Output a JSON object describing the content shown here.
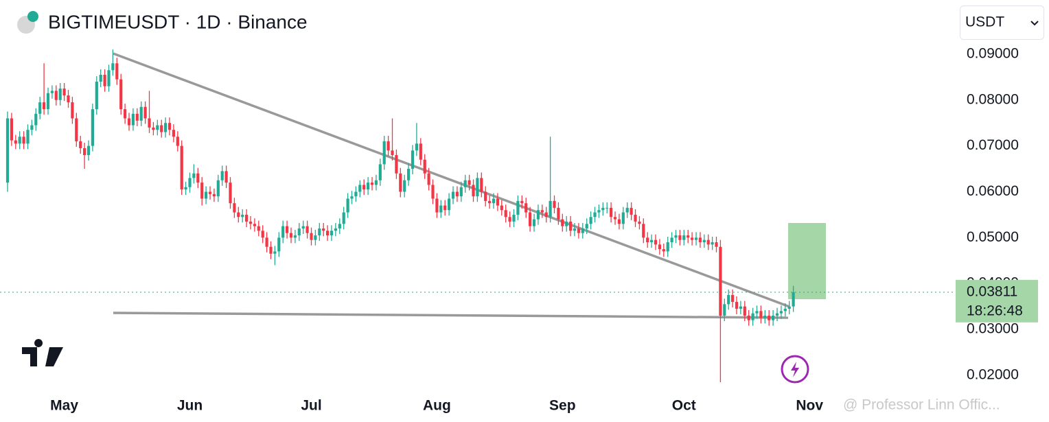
{
  "chart_data": {
    "type": "candlestick",
    "title": "BIGTIMEUSDT · 1D · Binance",
    "currency": "USDT",
    "up_color": "#22ab94",
    "down_color": "#f23645",
    "last_price": 0.03811,
    "countdown": "18:26:48",
    "watermark": "@ Professor Linn Offic...",
    "ylim": [
      0.0158,
      0.1018
    ],
    "yticks": [
      {
        "value": 0.02,
        "label": "0.02000"
      },
      {
        "value": 0.03,
        "label": "0.03000"
      },
      {
        "value": 0.04,
        "label": "0.04000"
      },
      {
        "value": 0.05,
        "label": "0.05000"
      },
      {
        "value": 0.06,
        "label": "0.06000"
      },
      {
        "value": 0.07,
        "label": "0.07000"
      },
      {
        "value": 0.08,
        "label": "0.08000"
      },
      {
        "value": 0.09,
        "label": "0.09000"
      }
    ],
    "categories": [
      null,
      null,
      null,
      null,
      null,
      null,
      null,
      null,
      null,
      null,
      null,
      null,
      null,
      null,
      "May",
      null,
      null,
      null,
      null,
      null,
      null,
      null,
      null,
      null,
      null,
      null,
      null,
      null,
      null,
      null,
      null,
      null,
      null,
      null,
      null,
      null,
      null,
      null,
      null,
      null,
      null,
      null,
      null,
      null,
      null,
      "Jun",
      null,
      null,
      null,
      null,
      null,
      null,
      null,
      null,
      null,
      null,
      null,
      null,
      null,
      null,
      null,
      null,
      null,
      null,
      null,
      null,
      null,
      null,
      null,
      null,
      null,
      null,
      null,
      null,
      null,
      "Jul",
      null,
      null,
      null,
      null,
      null,
      null,
      null,
      null,
      null,
      null,
      null,
      null,
      null,
      null,
      null,
      null,
      null,
      null,
      null,
      null,
      null,
      null,
      null,
      null,
      null,
      null,
      null,
      null,
      null,
      null,
      "Aug",
      null,
      null,
      null,
      null,
      null,
      null,
      null,
      null,
      null,
      null,
      null,
      null,
      null,
      null,
      null,
      null,
      null,
      null,
      null,
      null,
      null,
      null,
      null,
      null,
      null,
      null,
      null,
      null,
      null,
      null,
      "Sep",
      null,
      null,
      null,
      null,
      null,
      null,
      null,
      null,
      null,
      null,
      null,
      null,
      null,
      null,
      null,
      null,
      null,
      null,
      null,
      null,
      null,
      null,
      null,
      null,
      null,
      null,
      null,
      null,
      null,
      "Oct",
      null,
      null,
      null,
      null,
      null,
      null,
      null,
      null,
      null,
      null,
      null,
      null,
      null,
      null,
      null,
      null,
      null,
      null,
      null,
      null,
      null,
      null,
      null,
      null,
      null,
      null,
      null,
      null,
      null,
      null,
      "Nov"
    ],
    "open": [
      0.062,
      0.076,
      0.0712,
      0.0705,
      0.072,
      0.0705,
      0.0735,
      0.0745,
      0.077,
      0.0795,
      0.078,
      0.0815,
      0.082,
      0.08,
      0.0825,
      0.081,
      0.0795,
      0.076,
      0.071,
      0.0695,
      0.068,
      0.07,
      0.078,
      0.084,
      0.0855,
      0.083,
      0.0865,
      0.088,
      0.0845,
      0.078,
      0.076,
      0.0745,
      0.077,
      0.0755,
      0.0785,
      0.076,
      0.074,
      0.0735,
      0.0745,
      0.073,
      0.075,
      0.0735,
      0.072,
      0.07,
      0.0605,
      0.061,
      0.063,
      0.064,
      0.062,
      0.0585,
      0.06,
      0.0595,
      0.059,
      0.0625,
      0.0645,
      0.062,
      0.0575,
      0.0555,
      0.0545,
      0.055,
      0.0535,
      0.053,
      0.0525,
      0.0515,
      0.05,
      0.048,
      0.0465,
      0.047,
      0.05,
      0.0525,
      0.051,
      0.05,
      0.0505,
      0.052,
      0.0525,
      0.051,
      0.0495,
      0.0505,
      0.052,
      0.0515,
      0.0505,
      0.0515,
      0.052,
      0.053,
      0.0555,
      0.0585,
      0.059,
      0.06,
      0.0615,
      0.0605,
      0.062,
      0.0615,
      0.0625,
      0.066,
      0.071,
      0.069,
      0.068,
      0.064,
      0.06,
      0.0625,
      0.065,
      0.069,
      0.0705,
      0.067,
      0.064,
      0.0615,
      0.0585,
      0.0555,
      0.057,
      0.056,
      0.0585,
      0.06,
      0.059,
      0.061,
      0.0625,
      0.0615,
      0.059,
      0.063,
      0.06,
      0.058,
      0.0575,
      0.0585,
      0.057,
      0.056,
      0.0545,
      0.0535,
      0.055,
      0.058,
      0.0575,
      0.0555,
      0.0525,
      0.054,
      0.056,
      0.0555,
      0.0545,
      0.058,
      0.0565,
      0.054,
      0.0525,
      0.0535,
      0.0515,
      0.052,
      0.051,
      0.052,
      0.053,
      0.0545,
      0.0555,
      0.056,
      0.0565,
      0.0565,
      0.0545,
      0.054,
      0.053,
      0.0555,
      0.0565,
      0.055,
      0.0535,
      0.053,
      0.05,
      0.049,
      0.0495,
      0.0485,
      0.0475,
      0.047,
      0.049,
      0.05,
      0.0505,
      0.0495,
      0.0505,
      0.05,
      0.0495,
      0.05,
      0.049,
      0.0495,
      0.0485,
      0.049,
      0.048,
      0.033,
      0.0355,
      0.0375,
      0.036,
      0.0345,
      0.035,
      0.033,
      0.032,
      0.0335,
      0.034,
      0.0325,
      0.033,
      0.032,
      0.033,
      0.0335,
      0.034,
      0.0345,
      0.035,
      null,
      null,
      null,
      null
    ],
    "high": [
      0.0775,
      0.0772,
      0.0724,
      0.0732,
      0.0732,
      0.0747,
      0.0757,
      0.0782,
      0.0807,
      0.088,
      0.0827,
      0.0832,
      0.0832,
      0.0837,
      0.0837,
      0.0822,
      0.0807,
      0.0772,
      0.0722,
      0.0707,
      0.0712,
      0.0792,
      0.0852,
      0.0867,
      0.0867,
      0.0877,
      0.091,
      0.0892,
      0.0857,
      0.0792,
      0.0772,
      0.0782,
      0.0782,
      0.0797,
      0.0797,
      0.082,
      0.0752,
      0.0757,
      0.0757,
      0.0762,
      0.0762,
      0.0747,
      0.0732,
      0.0712,
      0.0622,
      0.0642,
      0.066,
      0.0652,
      0.0632,
      0.0612,
      0.0612,
      0.0607,
      0.0637,
      0.0657,
      0.0657,
      0.0632,
      0.0587,
      0.0567,
      0.0562,
      0.0562,
      0.0547,
      0.0542,
      0.0537,
      0.0527,
      0.0512,
      0.0492,
      0.0482,
      0.0512,
      0.0537,
      0.0537,
      0.0522,
      0.0517,
      0.0532,
      0.0537,
      0.0537,
      0.0522,
      0.0517,
      0.0532,
      0.0532,
      0.0527,
      0.0527,
      0.0532,
      0.0542,
      0.0567,
      0.0597,
      0.0602,
      0.0612,
      0.0625,
      0.0627,
      0.0632,
      0.0632,
      0.0637,
      0.0672,
      0.0722,
      0.0722,
      0.076,
      0.0692,
      0.0652,
      0.0637,
      0.0662,
      0.0702,
      0.075,
      0.0717,
      0.0682,
      0.0652,
      0.0627,
      0.0597,
      0.0582,
      0.0582,
      0.0597,
      0.0612,
      0.0612,
      0.0622,
      0.0637,
      0.0637,
      0.0627,
      0.0642,
      0.0642,
      0.0612,
      0.0592,
      0.0597,
      0.0597,
      0.0582,
      0.0572,
      0.0557,
      0.0562,
      0.0592,
      0.0592,
      0.0587,
      0.0567,
      0.0552,
      0.0572,
      0.0572,
      0.0567,
      0.072,
      0.0592,
      0.0577,
      0.0552,
      0.0547,
      0.0547,
      0.0532,
      0.0532,
      0.0532,
      0.0542,
      0.0557,
      0.0567,
      0.0572,
      0.0577,
      0.0577,
      0.0577,
      0.0557,
      0.0552,
      0.0567,
      0.0577,
      0.0577,
      0.0562,
      0.0547,
      0.0542,
      0.0512,
      0.0507,
      0.0507,
      0.0497,
      0.0487,
      0.0502,
      0.0512,
      0.0517,
      0.0517,
      0.0517,
      0.0517,
      0.0512,
      0.0512,
      0.0512,
      0.0507,
      0.0507,
      0.0502,
      0.0502,
      0.0495,
      0.0367,
      0.0387,
      0.0387,
      0.0372,
      0.0362,
      0.0362,
      0.0342,
      0.0347,
      0.0352,
      0.0352,
      0.0342,
      0.0342,
      0.0342,
      0.0347,
      0.0352,
      0.0357,
      0.0362,
      0.0395,
      null,
      null,
      null,
      null
    ],
    "low": [
      0.06,
      0.07,
      0.0693,
      0.0693,
      0.0693,
      0.0693,
      0.0723,
      0.0733,
      0.0758,
      0.0768,
      0.0768,
      0.0803,
      0.0788,
      0.0788,
      0.0798,
      0.0783,
      0.0748,
      0.0698,
      0.0683,
      0.065,
      0.0668,
      0.0688,
      0.0768,
      0.0828,
      0.0818,
      0.0818,
      0.0853,
      0.0833,
      0.0768,
      0.0748,
      0.0733,
      0.0733,
      0.0743,
      0.0743,
      0.0748,
      0.0728,
      0.0723,
      0.0723,
      0.0718,
      0.0718,
      0.0723,
      0.0708,
      0.0688,
      0.0593,
      0.0593,
      0.0598,
      0.0618,
      0.0608,
      0.057,
      0.0573,
      0.0583,
      0.0578,
      0.0578,
      0.0613,
      0.0608,
      0.0563,
      0.0543,
      0.0533,
      0.0533,
      0.0523,
      0.0518,
      0.0513,
      0.0503,
      0.0488,
      0.0468,
      0.0453,
      0.044,
      0.0458,
      0.0488,
      0.0498,
      0.0488,
      0.0488,
      0.0493,
      0.0508,
      0.0498,
      0.0483,
      0.0483,
      0.0493,
      0.0503,
      0.0493,
      0.0493,
      0.0503,
      0.0508,
      0.0518,
      0.0543,
      0.0573,
      0.0578,
      0.0588,
      0.0593,
      0.0593,
      0.0603,
      0.0603,
      0.0613,
      0.0648,
      0.0678,
      0.0668,
      0.0628,
      0.0588,
      0.0588,
      0.0613,
      0.0638,
      0.0678,
      0.0658,
      0.0628,
      0.0603,
      0.0573,
      0.0543,
      0.0543,
      0.0548,
      0.0548,
      0.0573,
      0.0578,
      0.0578,
      0.0598,
      0.0603,
      0.0578,
      0.0578,
      0.0588,
      0.0568,
      0.0563,
      0.0563,
      0.0558,
      0.0548,
      0.0533,
      0.0523,
      0.0523,
      0.0538,
      0.0563,
      0.0543,
      0.0513,
      0.0513,
      0.0528,
      0.0543,
      0.0533,
      0.0533,
      0.0553,
      0.0528,
      0.0513,
      0.0513,
      0.0503,
      0.0503,
      0.0498,
      0.0498,
      0.0508,
      0.0518,
      0.0533,
      0.0543,
      0.0548,
      0.0553,
      0.0533,
      0.0528,
      0.0518,
      0.0518,
      0.0543,
      0.0538,
      0.0523,
      0.0518,
      0.0488,
      0.0478,
      0.0478,
      0.0473,
      0.0463,
      0.0458,
      0.0458,
      0.0478,
      0.0488,
      0.0483,
      0.0483,
      0.0488,
      0.0483,
      0.0483,
      0.0478,
      0.0478,
      0.0473,
      0.0473,
      0.0468,
      0.0185,
      0.0318,
      0.0343,
      0.0348,
      0.0333,
      0.0333,
      0.0318,
      0.0308,
      0.0308,
      0.0323,
      0.0313,
      0.0313,
      0.0308,
      0.0308,
      0.0318,
      0.0323,
      0.0328,
      0.0333,
      0.0338,
      null,
      null,
      null,
      null
    ],
    "close": [
      0.076,
      0.0712,
      0.0705,
      0.072,
      0.0705,
      0.0735,
      0.0745,
      0.077,
      0.0795,
      0.078,
      0.0815,
      0.082,
      0.08,
      0.0825,
      0.081,
      0.0795,
      0.076,
      0.071,
      0.0695,
      0.068,
      0.07,
      0.078,
      0.084,
      0.0855,
      0.083,
      0.0865,
      0.088,
      0.0845,
      0.078,
      0.076,
      0.0745,
      0.077,
      0.0755,
      0.0785,
      0.076,
      0.074,
      0.0735,
      0.0745,
      0.073,
      0.075,
      0.0735,
      0.072,
      0.07,
      0.0605,
      0.061,
      0.063,
      0.064,
      0.062,
      0.0585,
      0.06,
      0.0595,
      0.059,
      0.0625,
      0.0645,
      0.062,
      0.0575,
      0.0555,
      0.0545,
      0.055,
      0.0535,
      0.053,
      0.0525,
      0.0515,
      0.05,
      0.048,
      0.0465,
      0.047,
      0.05,
      0.0525,
      0.051,
      0.05,
      0.0505,
      0.052,
      0.0525,
      0.051,
      0.0495,
      0.0505,
      0.052,
      0.0515,
      0.0505,
      0.0515,
      0.052,
      0.053,
      0.0555,
      0.0585,
      0.059,
      0.06,
      0.0615,
      0.0605,
      0.062,
      0.0615,
      0.0625,
      0.066,
      0.071,
      0.069,
      0.068,
      0.064,
      0.06,
      0.0625,
      0.065,
      0.069,
      0.0705,
      0.067,
      0.064,
      0.0615,
      0.0585,
      0.0555,
      0.057,
      0.056,
      0.0585,
      0.06,
      0.059,
      0.061,
      0.0625,
      0.0615,
      0.059,
      0.063,
      0.06,
      0.058,
      0.0575,
      0.0585,
      0.057,
      0.056,
      0.0545,
      0.0535,
      0.055,
      0.058,
      0.0575,
      0.0555,
      0.0525,
      0.054,
      0.056,
      0.0555,
      0.0545,
      0.058,
      0.0565,
      0.054,
      0.0525,
      0.0535,
      0.0515,
      0.052,
      0.051,
      0.052,
      0.053,
      0.0545,
      0.0555,
      0.056,
      0.0565,
      0.0565,
      0.0545,
      0.054,
      0.053,
      0.0555,
      0.0565,
      0.055,
      0.0535,
      0.053,
      0.05,
      0.049,
      0.0495,
      0.0485,
      0.0475,
      0.047,
      0.049,
      0.05,
      0.0505,
      0.0495,
      0.0505,
      0.05,
      0.0495,
      0.05,
      0.049,
      0.0495,
      0.0485,
      0.049,
      0.048,
      0.033,
      0.0355,
      0.0375,
      0.036,
      0.0345,
      0.035,
      0.033,
      0.032,
      0.0335,
      0.034,
      0.0325,
      0.033,
      0.032,
      0.033,
      0.0335,
      0.034,
      0.0345,
      0.035,
      0.03811,
      null,
      null,
      null,
      null
    ]
  }
}
